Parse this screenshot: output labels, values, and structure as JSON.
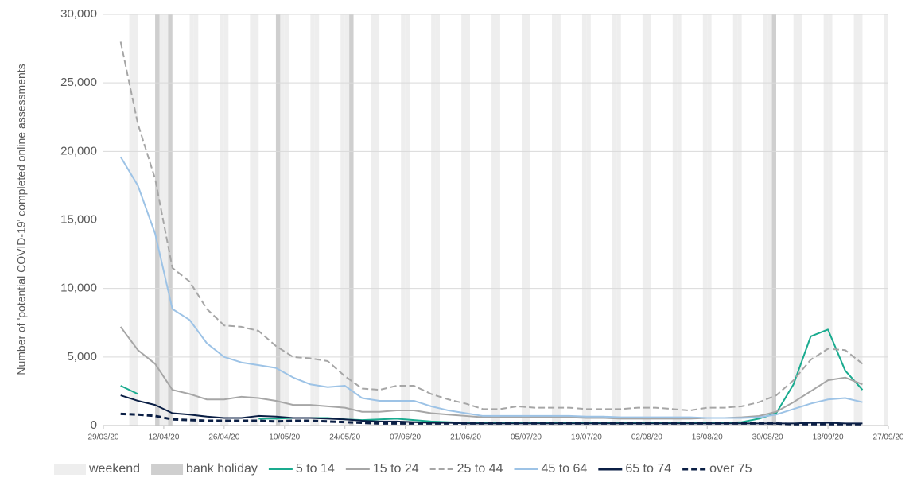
{
  "chart_data": {
    "type": "line",
    "y_label": "Number of 'potential COVID-19' completed online assessments",
    "xlim": [
      "29/03/20",
      "27/09/20"
    ],
    "xticks": [
      "29/03/20",
      "12/04/20",
      "26/04/20",
      "10/05/20",
      "24/05/20",
      "07/06/20",
      "21/06/20",
      "05/07/20",
      "19/07/20",
      "02/08/20",
      "16/08/20",
      "30/08/20",
      "13/09/20",
      "27/09/20"
    ],
    "ylim": [
      0,
      30000
    ],
    "yticks": [
      0,
      {
        "value": 5000,
        "label": "5,000"
      },
      {
        "value": 10000,
        "label": "10,000"
      },
      {
        "value": 15000,
        "label": "15,000"
      },
      {
        "value": 20000,
        "label": "20,000"
      },
      {
        "value": 25000,
        "label": "25,000"
      },
      {
        "value": 30000,
        "label": "30,000"
      }
    ],
    "grid": true,
    "legend": "bottom",
    "shading": [
      {
        "name": "weekend",
        "color": "#eeeeee",
        "dates": [
          "04/04/20",
          "05/04/20",
          "11/04/20",
          "12/04/20",
          "18/04/20",
          "19/04/20",
          "25/04/20",
          "26/04/20",
          "02/05/20",
          "03/05/20",
          "09/05/20",
          "10/05/20",
          "16/05/20",
          "17/05/20",
          "23/05/20",
          "24/05/20",
          "30/05/20",
          "31/05/20",
          "06/06/20",
          "07/06/20",
          "13/06/20",
          "14/06/20",
          "20/06/20",
          "21/06/20",
          "27/06/20",
          "28/06/20",
          "04/07/20",
          "05/07/20",
          "11/07/20",
          "12/07/20",
          "18/07/20",
          "19/07/20",
          "25/07/20",
          "26/07/20",
          "01/08/20",
          "02/08/20",
          "08/08/20",
          "09/08/20",
          "15/08/20",
          "16/08/20",
          "22/08/20",
          "23/08/20",
          "29/08/20",
          "30/08/20",
          "05/09/20",
          "06/09/20",
          "12/09/20",
          "13/09/20",
          "19/09/20",
          "20/09/20",
          "26/09/20"
        ]
      },
      {
        "name": "bank holiday",
        "color": "#cfcfcf",
        "dates": [
          "10/04/20",
          "13/04/20",
          "08/05/20",
          "25/05/20",
          "31/08/20"
        ]
      }
    ],
    "x": [
      "02/04/20",
      "06/04/20",
      "10/04/20",
      "14/04/20",
      "18/04/20",
      "22/04/20",
      "26/04/20",
      "30/04/20",
      "04/05/20",
      "08/05/20",
      "12/05/20",
      "16/05/20",
      "20/05/20",
      "24/05/20",
      "28/05/20",
      "01/06/20",
      "05/06/20",
      "09/06/20",
      "13/06/20",
      "17/06/20",
      "21/06/20",
      "25/06/20",
      "29/06/20",
      "03/07/20",
      "07/07/20",
      "11/07/20",
      "15/07/20",
      "19/07/20",
      "23/07/20",
      "27/07/20",
      "31/07/20",
      "04/08/20",
      "08/08/20",
      "12/08/20",
      "16/08/20",
      "20/08/20",
      "24/08/20",
      "28/08/20",
      "01/09/20",
      "05/09/20",
      "09/09/20",
      "13/09/20",
      "17/09/20",
      "21/09/20"
    ],
    "series": [
      {
        "name": "5 to 14",
        "color": "#1aab8f",
        "dashed": false,
        "values": [
          2900,
          2300,
          null,
          null,
          null,
          null,
          null,
          null,
          500,
          500,
          550,
          550,
          550,
          450,
          400,
          450,
          500,
          400,
          300,
          250,
          200,
          200,
          200,
          200,
          200,
          200,
          200,
          200,
          200,
          200,
          200,
          200,
          200,
          200,
          200,
          200,
          250,
          500,
          900,
          3000,
          6500,
          7000,
          4000,
          2600
        ]
      },
      {
        "name": "15 to 24",
        "color": "#a6a6a6",
        "dashed": false,
        "values": [
          7200,
          5500,
          4500,
          2600,
          2300,
          1900,
          1900,
          2100,
          2000,
          1800,
          1500,
          1500,
          1400,
          1300,
          1000,
          1000,
          1100,
          1100,
          900,
          800,
          700,
          600,
          600,
          600,
          600,
          600,
          600,
          550,
          550,
          500,
          500,
          500,
          500,
          500,
          550,
          550,
          600,
          700,
          1000,
          1700,
          2500,
          3300,
          3500,
          3000
        ]
      },
      {
        "name": "25 to 44",
        "color": "#a6a6a6",
        "dashed": true,
        "values": [
          28000,
          22000,
          18000,
          11500,
          10500,
          8500,
          7300,
          7200,
          6900,
          5800,
          5000,
          4900,
          4700,
          3600,
          2700,
          2600,
          2900,
          2900,
          2300,
          1900,
          1600,
          1200,
          1200,
          1400,
          1300,
          1300,
          1300,
          1200,
          1200,
          1200,
          1300,
          1300,
          1200,
          1100,
          1300,
          1300,
          1400,
          1700,
          2200,
          3300,
          4800,
          5600,
          5500,
          4500
        ]
      },
      {
        "name": "45 to 64",
        "color": "#9dc3e6",
        "dashed": false,
        "values": [
          19600,
          17500,
          14000,
          8500,
          7700,
          6000,
          5000,
          4600,
          4400,
          4200,
          3500,
          3000,
          2800,
          2900,
          2000,
          1800,
          1800,
          1800,
          1400,
          1100,
          900,
          700,
          700,
          700,
          700,
          700,
          700,
          650,
          650,
          600,
          600,
          600,
          600,
          600,
          550,
          550,
          550,
          600,
          800,
          1200,
          1600,
          1900,
          2000,
          1700
        ]
      },
      {
        "name": "65 to 74",
        "color": "#0b1f45",
        "dashed": false,
        "values": [
          2200,
          1800,
          1500,
          900,
          800,
          650,
          550,
          550,
          700,
          650,
          550,
          550,
          500,
          450,
          350,
          300,
          300,
          250,
          200,
          200,
          150,
          150,
          150,
          150,
          150,
          150,
          150,
          150,
          150,
          150,
          150,
          150,
          150,
          150,
          150,
          150,
          150,
          150,
          150,
          150,
          200,
          200,
          150,
          150
        ]
      },
      {
        "name": "over 75",
        "color": "#0b1f45",
        "dashed": true,
        "values": [
          850,
          800,
          700,
          450,
          400,
          350,
          350,
          350,
          350,
          300,
          350,
          350,
          300,
          250,
          200,
          150,
          150,
          150,
          150,
          150,
          150,
          150,
          150,
          150,
          150,
          150,
          150,
          150,
          150,
          150,
          150,
          150,
          150,
          150,
          150,
          150,
          150,
          150,
          150,
          100,
          100,
          100,
          100,
          100
        ]
      }
    ]
  }
}
